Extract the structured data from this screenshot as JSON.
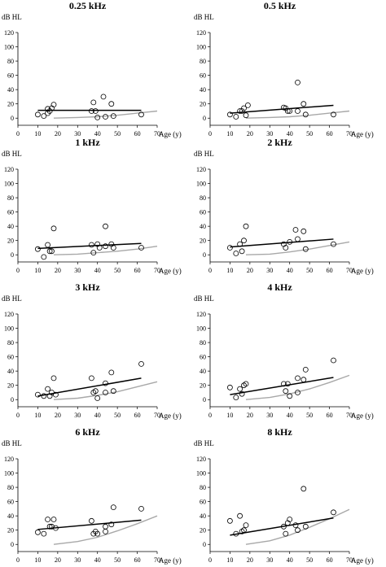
{
  "chart_data": [
    {
      "type": "scatter",
      "title": "0.25 kHz",
      "ylabel": "dB HL",
      "xlabel": "Age (y)",
      "xlim": [
        0,
        70
      ],
      "ylim": [
        -10,
        120
      ],
      "xticks": [
        "0",
        "10",
        "20",
        "30",
        "40",
        "50",
        "60",
        "70"
      ],
      "yticks": [
        "0",
        "20",
        "40",
        "60",
        "80",
        "100",
        "120"
      ],
      "points": [
        [
          10,
          5
        ],
        [
          13,
          3
        ],
        [
          15,
          7
        ],
        [
          15,
          13
        ],
        [
          16,
          10
        ],
        [
          17,
          14
        ],
        [
          18,
          19
        ],
        [
          37,
          10
        ],
        [
          38,
          22
        ],
        [
          39,
          10
        ],
        [
          40,
          1
        ],
        [
          43,
          30
        ],
        [
          44,
          2
        ],
        [
          47,
          20
        ],
        [
          48,
          3
        ],
        [
          62,
          5
        ]
      ],
      "fit_line": [
        [
          10,
          11
        ],
        [
          62,
          11
        ]
      ],
      "reference_curve": [
        [
          18,
          0
        ],
        [
          30,
          1
        ],
        [
          40,
          2
        ],
        [
          50,
          4
        ],
        [
          60,
          7
        ],
        [
          70,
          10
        ]
      ]
    },
    {
      "type": "scatter",
      "title": "0.5 kHz",
      "ylabel": "dB HL",
      "xlabel": "Age (y)",
      "xlim": [
        0,
        70
      ],
      "ylim": [
        -10,
        120
      ],
      "xticks": [
        "0",
        "10",
        "20",
        "30",
        "40",
        "50",
        "60",
        "70"
      ],
      "yticks": [
        "0",
        "20",
        "40",
        "60",
        "80",
        "100",
        "120"
      ],
      "points": [
        [
          10,
          5
        ],
        [
          13,
          2
        ],
        [
          15,
          10
        ],
        [
          16,
          10
        ],
        [
          17,
          14
        ],
        [
          18,
          4
        ],
        [
          19,
          18
        ],
        [
          37,
          15
        ],
        [
          38,
          14
        ],
        [
          39,
          10
        ],
        [
          40,
          10
        ],
        [
          44,
          50
        ],
        [
          44,
          10
        ],
        [
          47,
          20
        ],
        [
          48,
          5
        ],
        [
          62,
          5
        ]
      ],
      "fit_line": [
        [
          10,
          7
        ],
        [
          62,
          18
        ]
      ],
      "reference_curve": [
        [
          18,
          0
        ],
        [
          30,
          1
        ],
        [
          40,
          2
        ],
        [
          50,
          4
        ],
        [
          60,
          7
        ],
        [
          70,
          10
        ]
      ]
    },
    {
      "type": "scatter",
      "title": "1 kHz",
      "ylabel": "dB HL",
      "xlabel": "Age (y)",
      "xlim": [
        0,
        70
      ],
      "ylim": [
        -10,
        120
      ],
      "xticks": [
        "0",
        "10",
        "20",
        "30",
        "40",
        "50",
        "60",
        "70"
      ],
      "yticks": [
        "0",
        "20",
        "40",
        "60",
        "80",
        "100",
        "120"
      ],
      "points": [
        [
          10,
          8
        ],
        [
          13,
          -3
        ],
        [
          15,
          14
        ],
        [
          16,
          5
        ],
        [
          17,
          5
        ],
        [
          18,
          37
        ],
        [
          37,
          14
        ],
        [
          38,
          3
        ],
        [
          40,
          15
        ],
        [
          41,
          10
        ],
        [
          44,
          40
        ],
        [
          44,
          12
        ],
        [
          47,
          15
        ],
        [
          48,
          10
        ],
        [
          62,
          10
        ]
      ],
      "fit_line": [
        [
          10,
          9
        ],
        [
          62,
          16
        ]
      ],
      "reference_curve": [
        [
          18,
          0
        ],
        [
          30,
          1
        ],
        [
          40,
          3
        ],
        [
          50,
          5
        ],
        [
          60,
          8
        ],
        [
          70,
          12
        ]
      ]
    },
    {
      "type": "scatter",
      "title": "2 kHz",
      "ylabel": "dB HL",
      "xlabel": "Age (y)",
      "xlim": [
        0,
        70
      ],
      "ylim": [
        -10,
        120
      ],
      "xticks": [
        "0",
        "10",
        "20",
        "30",
        "40",
        "50",
        "60",
        "70"
      ],
      "yticks": [
        "0",
        "20",
        "40",
        "60",
        "80",
        "100",
        "120"
      ],
      "points": [
        [
          10,
          10
        ],
        [
          13,
          2
        ],
        [
          15,
          15
        ],
        [
          16,
          5
        ],
        [
          17,
          20
        ],
        [
          18,
          40
        ],
        [
          37,
          15
        ],
        [
          38,
          10
        ],
        [
          40,
          18
        ],
        [
          43,
          35
        ],
        [
          44,
          22
        ],
        [
          47,
          33
        ],
        [
          48,
          8
        ],
        [
          62,
          15
        ]
      ],
      "fit_line": [
        [
          10,
          11
        ],
        [
          62,
          22
        ]
      ],
      "reference_curve": [
        [
          18,
          0
        ],
        [
          30,
          1
        ],
        [
          40,
          4
        ],
        [
          50,
          8
        ],
        [
          60,
          13
        ],
        [
          70,
          18
        ]
      ]
    },
    {
      "type": "scatter",
      "title": "3 kHz",
      "ylabel": "dB HL",
      "xlabel": "Age (y)",
      "xlim": [
        0,
        70
      ],
      "ylim": [
        -10,
        120
      ],
      "xticks": [
        "0",
        "10",
        "20",
        "30",
        "40",
        "50",
        "60",
        "70"
      ],
      "yticks": [
        "0",
        "20",
        "40",
        "60",
        "80",
        "100",
        "120"
      ],
      "points": [
        [
          10,
          7
        ],
        [
          13,
          5
        ],
        [
          15,
          15
        ],
        [
          16,
          5
        ],
        [
          17,
          10
        ],
        [
          18,
          30
        ],
        [
          19,
          7
        ],
        [
          37,
          30
        ],
        [
          38,
          10
        ],
        [
          39,
          12
        ],
        [
          40,
          2
        ],
        [
          44,
          23
        ],
        [
          44,
          10
        ],
        [
          47,
          38
        ],
        [
          48,
          12
        ],
        [
          62,
          50
        ]
      ],
      "fit_line": [
        [
          10,
          5
        ],
        [
          62,
          30
        ]
      ],
      "reference_curve": [
        [
          18,
          0
        ],
        [
          30,
          2
        ],
        [
          40,
          6
        ],
        [
          50,
          11
        ],
        [
          60,
          18
        ],
        [
          70,
          25
        ]
      ]
    },
    {
      "type": "scatter",
      "title": "4 kHz",
      "ylabel": "dB HL",
      "xlabel": "Age (y)",
      "xlim": [
        0,
        70
      ],
      "ylim": [
        -10,
        120
      ],
      "xticks": [
        "0",
        "10",
        "20",
        "30",
        "40",
        "50",
        "60",
        "70"
      ],
      "yticks": [
        "0",
        "20",
        "40",
        "60",
        "80",
        "100",
        "120"
      ],
      "points": [
        [
          10,
          17
        ],
        [
          13,
          3
        ],
        [
          15,
          15
        ],
        [
          16,
          8
        ],
        [
          17,
          20
        ],
        [
          18,
          22
        ],
        [
          37,
          22
        ],
        [
          38,
          12
        ],
        [
          39,
          22
        ],
        [
          40,
          5
        ],
        [
          44,
          30
        ],
        [
          44,
          10
        ],
        [
          47,
          28
        ],
        [
          48,
          42
        ],
        [
          62,
          55
        ]
      ],
      "fit_line": [
        [
          10,
          7
        ],
        [
          62,
          31
        ]
      ],
      "reference_curve": [
        [
          18,
          0
        ],
        [
          30,
          3
        ],
        [
          40,
          8
        ],
        [
          50,
          15
        ],
        [
          60,
          24
        ],
        [
          70,
          34
        ]
      ]
    },
    {
      "type": "scatter",
      "title": "6 kHz",
      "ylabel": "dB HL",
      "xlabel": "Age (y)",
      "xlim": [
        0,
        70
      ],
      "ylim": [
        -10,
        120
      ],
      "xticks": [
        "0",
        "10",
        "20",
        "30",
        "40",
        "50",
        "60",
        "70"
      ],
      "yticks": [
        "0",
        "20",
        "40",
        "60",
        "80",
        "100",
        "120"
      ],
      "points": [
        [
          10,
          17
        ],
        [
          13,
          15
        ],
        [
          15,
          35
        ],
        [
          16,
          25
        ],
        [
          17,
          25
        ],
        [
          18,
          35
        ],
        [
          19,
          23
        ],
        [
          37,
          33
        ],
        [
          38,
          15
        ],
        [
          39,
          18
        ],
        [
          40,
          15
        ],
        [
          44,
          25
        ],
        [
          44,
          18
        ],
        [
          47,
          28
        ],
        [
          48,
          52
        ],
        [
          62,
          50
        ]
      ],
      "fit_line": [
        [
          10,
          21
        ],
        [
          62,
          34
        ]
      ],
      "reference_curve": [
        [
          18,
          0
        ],
        [
          30,
          4
        ],
        [
          40,
          10
        ],
        [
          50,
          19
        ],
        [
          60,
          29
        ],
        [
          70,
          40
        ]
      ]
    },
    {
      "type": "scatter",
      "title": "8 kHz",
      "ylabel": "dB HL",
      "xlabel": "Age (y)",
      "xlim": [
        0,
        70
      ],
      "ylim": [
        -10,
        120
      ],
      "xticks": [
        "0",
        "10",
        "20",
        "30",
        "40",
        "50",
        "60",
        "70"
      ],
      "yticks": [
        "0",
        "20",
        "40",
        "60",
        "80",
        "100",
        "120"
      ],
      "points": [
        [
          10,
          33
        ],
        [
          13,
          15
        ],
        [
          15,
          40
        ],
        [
          16,
          18
        ],
        [
          17,
          20
        ],
        [
          18,
          27
        ],
        [
          37,
          25
        ],
        [
          38,
          15
        ],
        [
          39,
          30
        ],
        [
          40,
          35
        ],
        [
          43,
          27
        ],
        [
          44,
          20
        ],
        [
          47,
          78
        ],
        [
          48,
          25
        ],
        [
          62,
          45
        ]
      ],
      "fit_line": [
        [
          10,
          13
        ],
        [
          62,
          37
        ]
      ],
      "reference_curve": [
        [
          18,
          0
        ],
        [
          30,
          5
        ],
        [
          40,
          13
        ],
        [
          50,
          24
        ],
        [
          60,
          36
        ],
        [
          70,
          49
        ]
      ]
    }
  ]
}
